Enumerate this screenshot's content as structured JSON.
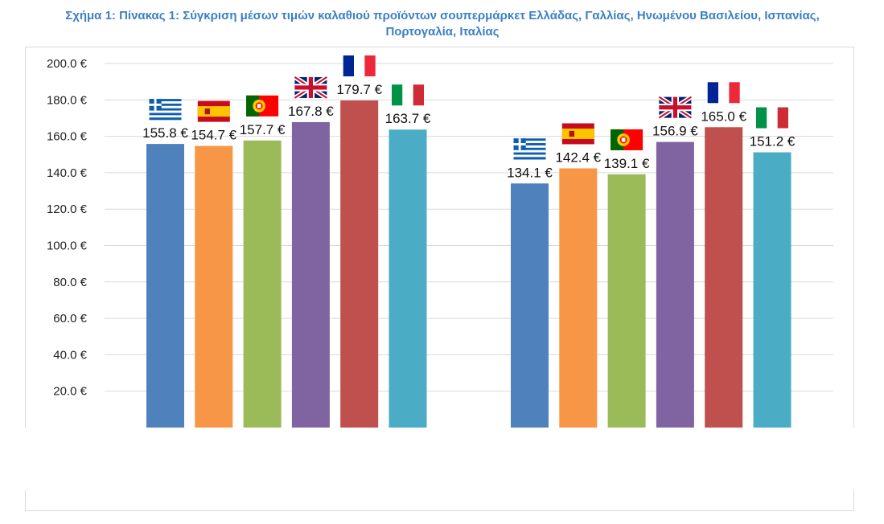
{
  "chart_data": {
    "type": "bar",
    "title": "Σχήμα 1: Πίνακας 1: Σύγκριση μέσων τιμών καλαθιού προϊόντων σουπερμάρκετ Ελλάδας, Γαλλίας, Ηνωμένου Βασιλείου, Ισπανίας, Πορτογαλία, Ιταλίας",
    "xlabel": "",
    "ylabel": "",
    "ylim": [
      0,
      200
    ],
    "y_ticks": [
      "200.0 €",
      "180.0 €",
      "160.0 €",
      "140.0 €",
      "120.0 €",
      "100.0 €",
      "80.0 €",
      "60.0 €",
      "40.0 €",
      "20.0 €"
    ],
    "y_tick_values": [
      200,
      180,
      160,
      140,
      120,
      100,
      80,
      60,
      40,
      20
    ],
    "grid": true,
    "legend": "none",
    "groups": [
      {
        "bars": [
          {
            "country": "greece",
            "value": 155.8,
            "label": "155.8 €",
            "color": "#4f81bd"
          },
          {
            "country": "spain",
            "value": 154.7,
            "label": "154.7 €",
            "color": "#f79646"
          },
          {
            "country": "portugal",
            "value": 157.7,
            "label": "157.7 €",
            "color": "#9bbb59"
          },
          {
            "country": "uk",
            "value": 167.8,
            "label": "167.8 €",
            "color": "#8064a2"
          },
          {
            "country": "france",
            "value": 179.7,
            "label": "179.7 €",
            "color": "#c0504d"
          },
          {
            "country": "italy",
            "value": 163.7,
            "label": "163.7 €",
            "color": "#4bacc6"
          }
        ]
      },
      {
        "bars": [
          {
            "country": "greece",
            "value": 134.1,
            "label": "134.1 €",
            "color": "#4f81bd"
          },
          {
            "country": "spain",
            "value": 142.4,
            "label": "142.4 €",
            "color": "#f79646"
          },
          {
            "country": "portugal",
            "value": 139.1,
            "label": "139.1 €",
            "color": "#9bbb59"
          },
          {
            "country": "uk",
            "value": 156.9,
            "label": "156.9 €",
            "color": "#8064a2"
          },
          {
            "country": "france",
            "value": 165.0,
            "label": "165.0 €",
            "color": "#c0504d"
          },
          {
            "country": "italy",
            "value": 151.2,
            "label": "151.2 €",
            "color": "#4bacc6"
          }
        ]
      }
    ]
  }
}
